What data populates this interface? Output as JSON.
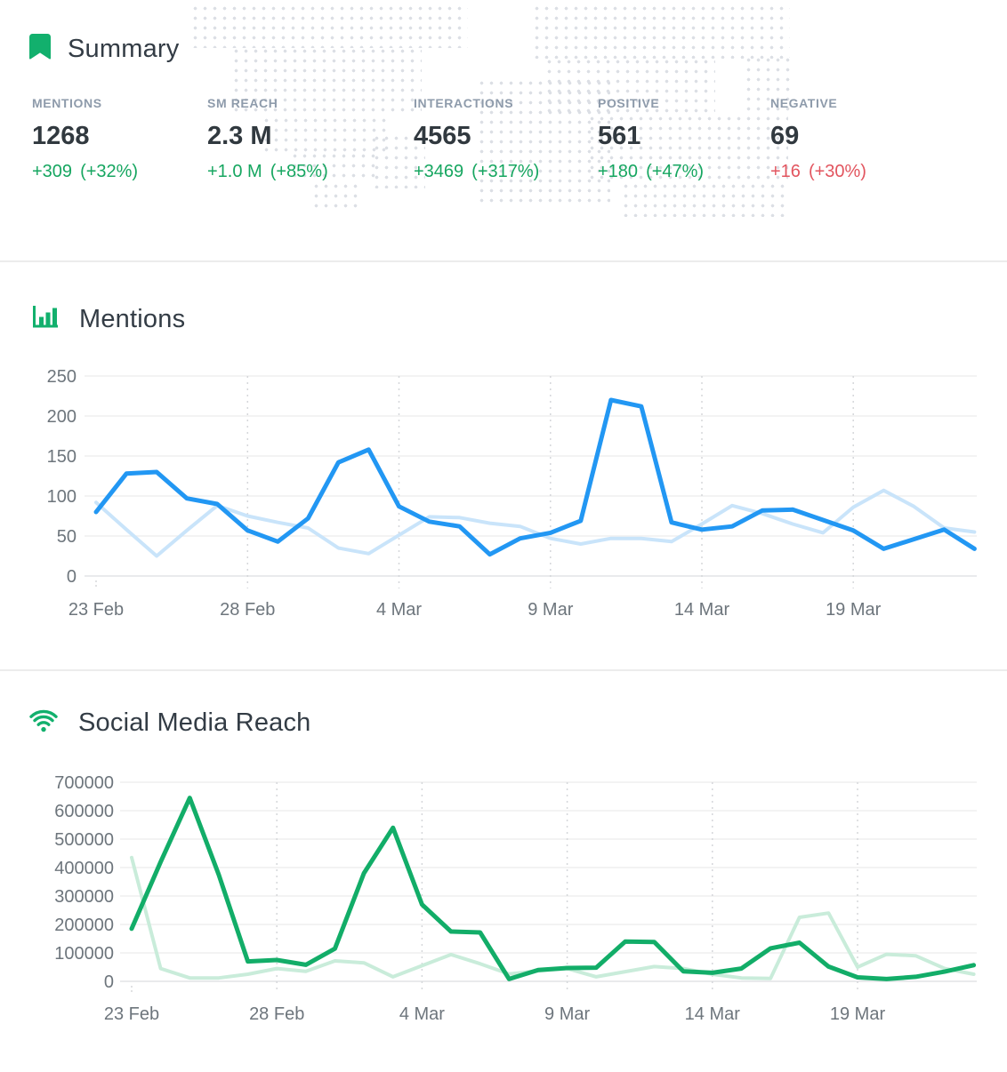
{
  "summary": {
    "title": "Summary",
    "icon": "bookmark-icon",
    "stats": [
      {
        "label": "MENTIONS",
        "value": "1268",
        "delta": "+309",
        "delta_pct": "(+32%)",
        "sentiment": "good"
      },
      {
        "label": "SM REACH",
        "value": "2.3 M",
        "delta": "+1.0 M",
        "delta_pct": "(+85%)",
        "sentiment": "good"
      },
      {
        "label": "INTERACTIONS",
        "value": "4565",
        "delta": "+3469",
        "delta_pct": "(+317%)",
        "sentiment": "good"
      },
      {
        "label": "POSITIVE",
        "value": "561",
        "delta": "+180",
        "delta_pct": "(+47%)",
        "sentiment": "good"
      },
      {
        "label": "NEGATIVE",
        "value": "69",
        "delta": "+16",
        "delta_pct": "(+30%)",
        "sentiment": "bad"
      }
    ]
  },
  "sections": {
    "mentions": {
      "title": "Mentions",
      "icon": "bar-chart-icon"
    },
    "social_media_reach": {
      "title": "Social Media Reach",
      "icon": "wifi-icon"
    }
  },
  "colors": {
    "good": "#16a660",
    "bad": "#e2555f",
    "icon_green": "#12b06d",
    "title_dark": "#333c45",
    "label_gray": "#8e9bab",
    "value_dark": "#31393f",
    "axis_text": "#6d757c",
    "gridline": "#efefef",
    "gridline_zero": "#e2e4e6",
    "gridline_dashed": "#d5d7da",
    "dot_map": "#dcdfe5",
    "divider": "#ececec",
    "mentions_current": "#2297f3",
    "mentions_previous": "#c9e4fa",
    "reach_current": "#12ad68",
    "reach_previous": "#c9ecda"
  },
  "chart_data": [
    {
      "id": "mentions",
      "type": "line",
      "title": "Mentions",
      "grid": true,
      "legend": false,
      "x_tick_labels": [
        "23 Feb",
        "28 Feb",
        "4 Mar",
        "9 Mar",
        "14 Mar",
        "19 Mar"
      ],
      "x_tick_indexes": [
        0,
        5,
        10,
        15,
        20,
        25
      ],
      "x_range_days": 30,
      "y_ticks": [
        0,
        50,
        100,
        150,
        200,
        250
      ],
      "ylim": [
        0,
        250
      ],
      "series": [
        {
          "name": "current period",
          "color_key": "mentions_current",
          "values": [
            80,
            128,
            130,
            97,
            90,
            57,
            43,
            72,
            142,
            158,
            87,
            68,
            62,
            27,
            47,
            54,
            69,
            220,
            212,
            67,
            58,
            62,
            82,
            83,
            70,
            57,
            34,
            46,
            58,
            34
          ]
        },
        {
          "name": "previous period",
          "color_key": "mentions_previous",
          "values": [
            92,
            58,
            25,
            57,
            88,
            75,
            67,
            60,
            35,
            28,
            51,
            74,
            73,
            66,
            62,
            47,
            40,
            47,
            47,
            43,
            65,
            88,
            78,
            65,
            54,
            86,
            107,
            87,
            60,
            55
          ]
        }
      ]
    },
    {
      "id": "social-media-reach",
      "type": "line",
      "title": "Social Media Reach",
      "grid": true,
      "legend": false,
      "x_tick_labels": [
        "23 Feb",
        "28 Feb",
        "4 Mar",
        "9 Mar",
        "14 Mar",
        "19 Mar"
      ],
      "x_tick_indexes": [
        0,
        5,
        10,
        15,
        20,
        25
      ],
      "x_range_days": 30,
      "y_ticks": [
        0,
        100000,
        200000,
        300000,
        400000,
        500000,
        600000,
        700000
      ],
      "ylim": [
        0,
        700000
      ],
      "series": [
        {
          "name": "current period",
          "color_key": "reach_current",
          "values": [
            185000,
            420000,
            645000,
            375000,
            70000,
            75000,
            58000,
            115000,
            380000,
            540000,
            270000,
            175000,
            172000,
            8000,
            40000,
            47000,
            48000,
            140000,
            138000,
            35000,
            30000,
            45000,
            116000,
            136000,
            52000,
            14000,
            8000,
            16000,
            34000,
            57000
          ]
        },
        {
          "name": "previous period",
          "color_key": "reach_previous",
          "values": [
            435000,
            45000,
            12000,
            12000,
            25000,
            45000,
            35000,
            72000,
            65000,
            16000,
            55000,
            94000,
            62000,
            26000,
            37000,
            45000,
            16000,
            34000,
            52000,
            45000,
            25000,
            12000,
            10000,
            225000,
            240000,
            50000,
            95000,
            90000,
            45000,
            25000
          ]
        }
      ]
    }
  ]
}
